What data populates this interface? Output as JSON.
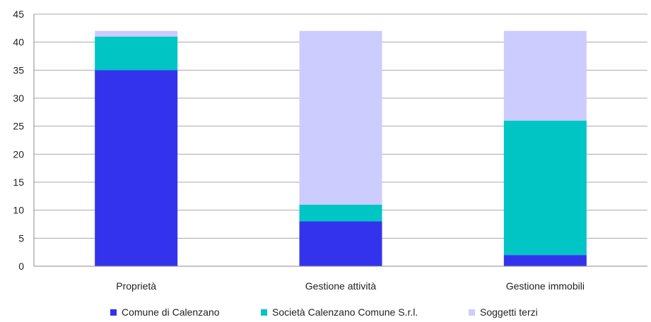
{
  "chart_data": {
    "type": "bar",
    "stacked": true,
    "categories": [
      "Proprietà",
      "Gestione attività",
      "Gestione immobili"
    ],
    "series": [
      {
        "name": "Comune di Calenzano",
        "color": "#3333ee",
        "values": [
          35,
          8,
          2
        ]
      },
      {
        "name": "Società Calenzano Comune S.r.l.",
        "color": "#00c5c5",
        "values": [
          6,
          3,
          24
        ]
      },
      {
        "name": "Soggetti terzi",
        "color": "#ccccff",
        "values": [
          1,
          31,
          16
        ]
      }
    ],
    "ylim": [
      0,
      45
    ],
    "yticks": [
      "0",
      "5",
      "10",
      "15",
      "20",
      "25",
      "30",
      "35",
      "40",
      "45"
    ],
    "grid": true,
    "legend_position": "bottom",
    "title": "",
    "xlabel": "",
    "ylabel": ""
  }
}
